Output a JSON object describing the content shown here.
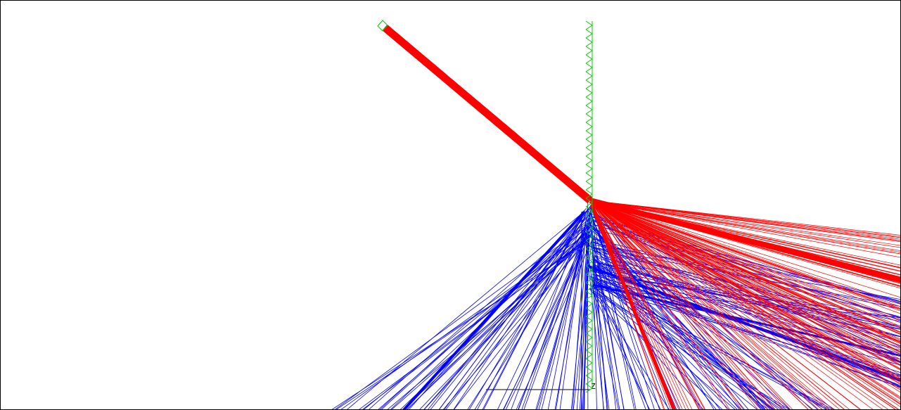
{
  "viewer": {
    "axis_label": "Z",
    "colors": {
      "background": "#ffffff",
      "border": "#000000",
      "reflected_rays": "#ff0000",
      "transmitted_rays": "#0000ff",
      "geometry": "#00cc00",
      "axis": "#000000"
    }
  }
}
